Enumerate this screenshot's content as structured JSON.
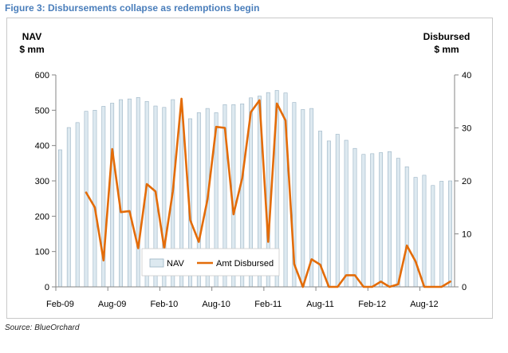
{
  "figure": {
    "title": "Figure 3: Disbursements collapse as redemptions begin",
    "source": "Source: BlueOrchard"
  },
  "chart_data": {
    "type": "bar+line",
    "left_axis_label_line1": "NAV",
    "left_axis_label_line2": "$ mm",
    "right_axis_label_line1": "Disbursed",
    "right_axis_label_line2": "$ mm",
    "x_tick_labels": [
      "Feb-09",
      "Aug-09",
      "Feb-10",
      "Aug-10",
      "Feb-11",
      "Aug-11",
      "Feb-12",
      "Aug-12"
    ],
    "x_tick_index": [
      0,
      6,
      12,
      18,
      24,
      30,
      36,
      42
    ],
    "y_left_ticks": [
      0,
      100,
      200,
      300,
      400,
      500,
      600
    ],
    "y_right_ticks": [
      0,
      10,
      20,
      30,
      40
    ],
    "y_left_lim": [
      0,
      600
    ],
    "y_right_lim": [
      0,
      40
    ],
    "months": [
      "Feb-09",
      "Mar-09",
      "Apr-09",
      "May-09",
      "Jun-09",
      "Jul-09",
      "Aug-09",
      "Sep-09",
      "Oct-09",
      "Nov-09",
      "Dec-09",
      "Jan-10",
      "Feb-10",
      "Mar-10",
      "Apr-10",
      "May-10",
      "Jun-10",
      "Jul-10",
      "Aug-10",
      "Sep-10",
      "Oct-10",
      "Nov-10",
      "Dec-10",
      "Jan-11",
      "Feb-11",
      "Mar-11",
      "Apr-11",
      "May-11",
      "Jun-11",
      "Jul-11",
      "Aug-11",
      "Sep-11",
      "Oct-11",
      "Nov-11",
      "Dec-11",
      "Jan-12",
      "Feb-12",
      "Mar-12",
      "Apr-12",
      "May-12",
      "Jun-12",
      "Jul-12",
      "Aug-12",
      "Sep-12",
      "Oct-12",
      "Nov-12"
    ],
    "series": [
      {
        "name": "NAV",
        "kind": "bar",
        "axis": "left",
        "color": "#dde9f0",
        "values": [
          388,
          451,
          465,
          497,
          500,
          511,
          520,
          530,
          532,
          536,
          525,
          512,
          508,
          530,
          497,
          476,
          493,
          505,
          493,
          516,
          516,
          518,
          535,
          540,
          550,
          556,
          549,
          522,
          502,
          505,
          441,
          413,
          432,
          415,
          392,
          375,
          377,
          380,
          383,
          364,
          340,
          310,
          316,
          287,
          299,
          300
        ]
      },
      {
        "name": "Amt Disbursed",
        "kind": "line",
        "axis": "right",
        "color": "#e36c09",
        "values": [
          null,
          null,
          null,
          17.8,
          15,
          5,
          26,
          14.1,
          14.3,
          7.3,
          19.4,
          18,
          7.3,
          18,
          35.5,
          12.6,
          8.5,
          16.5,
          30.2,
          30,
          13.7,
          20.5,
          33,
          35.2,
          8.5,
          34.6,
          31.4,
          4.3,
          0,
          5.2,
          4.2,
          0,
          0,
          2.2,
          2.2,
          0,
          0,
          1,
          0,
          0.5,
          7.8,
          4.8,
          0,
          0,
          0,
          1
        ]
      }
    ],
    "legend_position": "bottom-center inside plot",
    "grid": false
  }
}
